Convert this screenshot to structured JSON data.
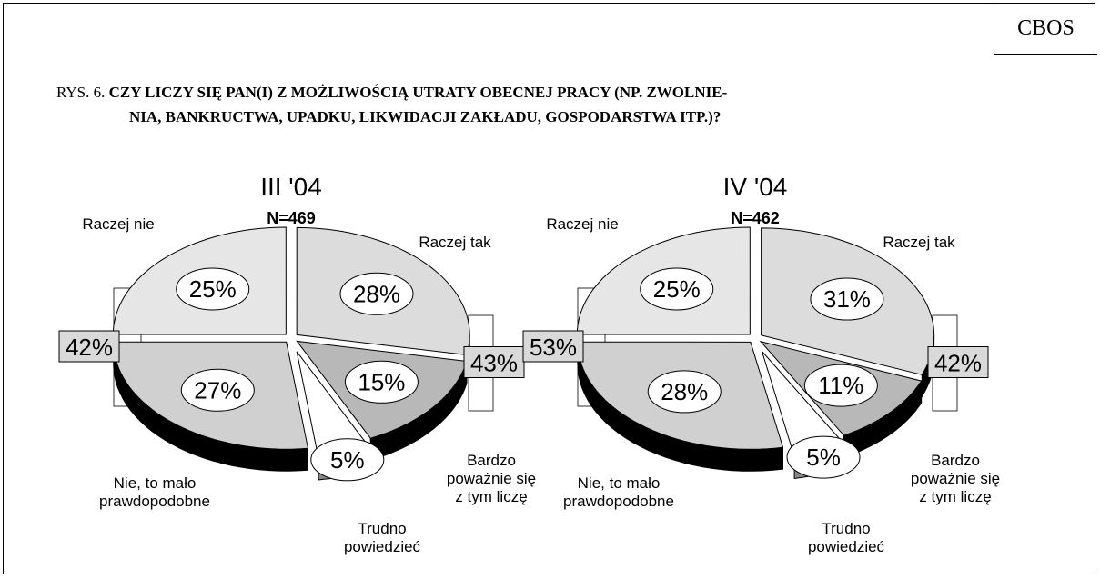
{
  "header": {
    "source": "CBOS",
    "figure_label": "RYS. 6.",
    "title_lines": [
      "CZY LICZY SIĘ PAN(I) Z MOŻLIWOŚCIĄ UTRATY OBECNEJ PRACY (NP. ZWOLNIE-",
      "NIA, BANKRUCTWA, UPADKU, LIKWIDACJI ZAKŁADU, GOSPODARSTWA ITP.)?"
    ]
  },
  "chart_data": [
    {
      "type": "pie",
      "title": "III '04",
      "subtitle": "N=469",
      "categories": [
        "Raczej tak",
        "Bardzo\npoważnie się\nz tym liczę",
        "Trudno\npowiedzieć",
        "Nie, to mało\nprawdopodobne",
        "Raczej nie"
      ],
      "values": [
        28,
        15,
        5,
        27,
        25
      ],
      "value_labels": [
        "28%",
        "15%",
        "5%",
        "27%",
        "25%"
      ],
      "colors": [
        "#dcdcdc",
        "#b8b8b8",
        "#ffffff",
        "#d0d0d0",
        "#e6e6e6"
      ],
      "groups": [
        {
          "value": 43,
          "label": "43%"
        },
        {
          "value": 42,
          "label": "42%"
        }
      ]
    },
    {
      "type": "pie",
      "title": "IV '04",
      "subtitle": "N=462",
      "categories": [
        "Raczej tak",
        "Bardzo\npoważnie się\nz tym liczę",
        "Trudno\npowiedzieć",
        "Nie, to mało\nprawdopodobne",
        "Raczej nie"
      ],
      "values": [
        31,
        11,
        5,
        28,
        25
      ],
      "value_labels": [
        "31%",
        "11%",
        "5%",
        "28%",
        "25%"
      ],
      "colors": [
        "#dcdcdc",
        "#b8b8b8",
        "#ffffff",
        "#d0d0d0",
        "#e6e6e6"
      ],
      "groups": [
        {
          "value": 42,
          "label": "42%"
        },
        {
          "value": 53,
          "label": "53%"
        }
      ]
    }
  ]
}
